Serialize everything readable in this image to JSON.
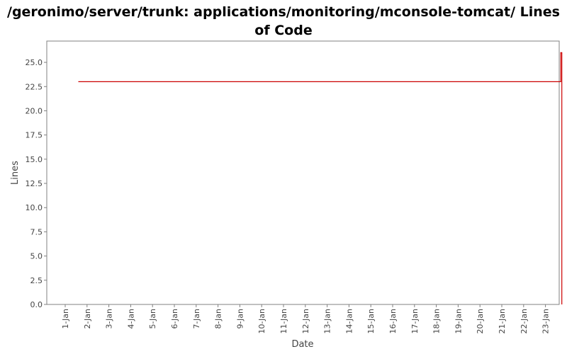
{
  "chart_data": {
    "type": "line",
    "title": "/geronimo/server/trunk: applications/monitoring/mconsole-tomcat/ Lines of Code",
    "xlabel": "Date",
    "ylabel": "Lines",
    "x_tick_labels": [
      "1-Jan",
      "2-Jan",
      "3-Jan",
      "4-Jan",
      "5-Jan",
      "6-Jan",
      "7-Jan",
      "8-Jan",
      "9-Jan",
      "10-Jan",
      "11-Jan",
      "12-Jan",
      "13-Jan",
      "14-Jan",
      "15-Jan",
      "16-Jan",
      "17-Jan",
      "18-Jan",
      "19-Jan",
      "20-Jan",
      "21-Jan",
      "22-Jan",
      "23-Jan"
    ],
    "y_tick_labels": [
      "0.0",
      "2.5",
      "5.0",
      "7.5",
      "10.0",
      "12.5",
      "15.0",
      "17.5",
      "20.0",
      "22.5",
      "25.0"
    ],
    "ylim": [
      0,
      27.2
    ],
    "series": [
      {
        "x_days": [
          0.6,
          22.7,
          22.7,
          22.75,
          22.75
        ],
        "values": [
          23,
          23,
          26,
          26,
          0
        ]
      }
    ],
    "grid": false,
    "legend": "none",
    "colors": {
      "series": "#cc0000",
      "plot_border": "#808080",
      "tick_text": "#444444",
      "background": "#ffffff"
    }
  }
}
